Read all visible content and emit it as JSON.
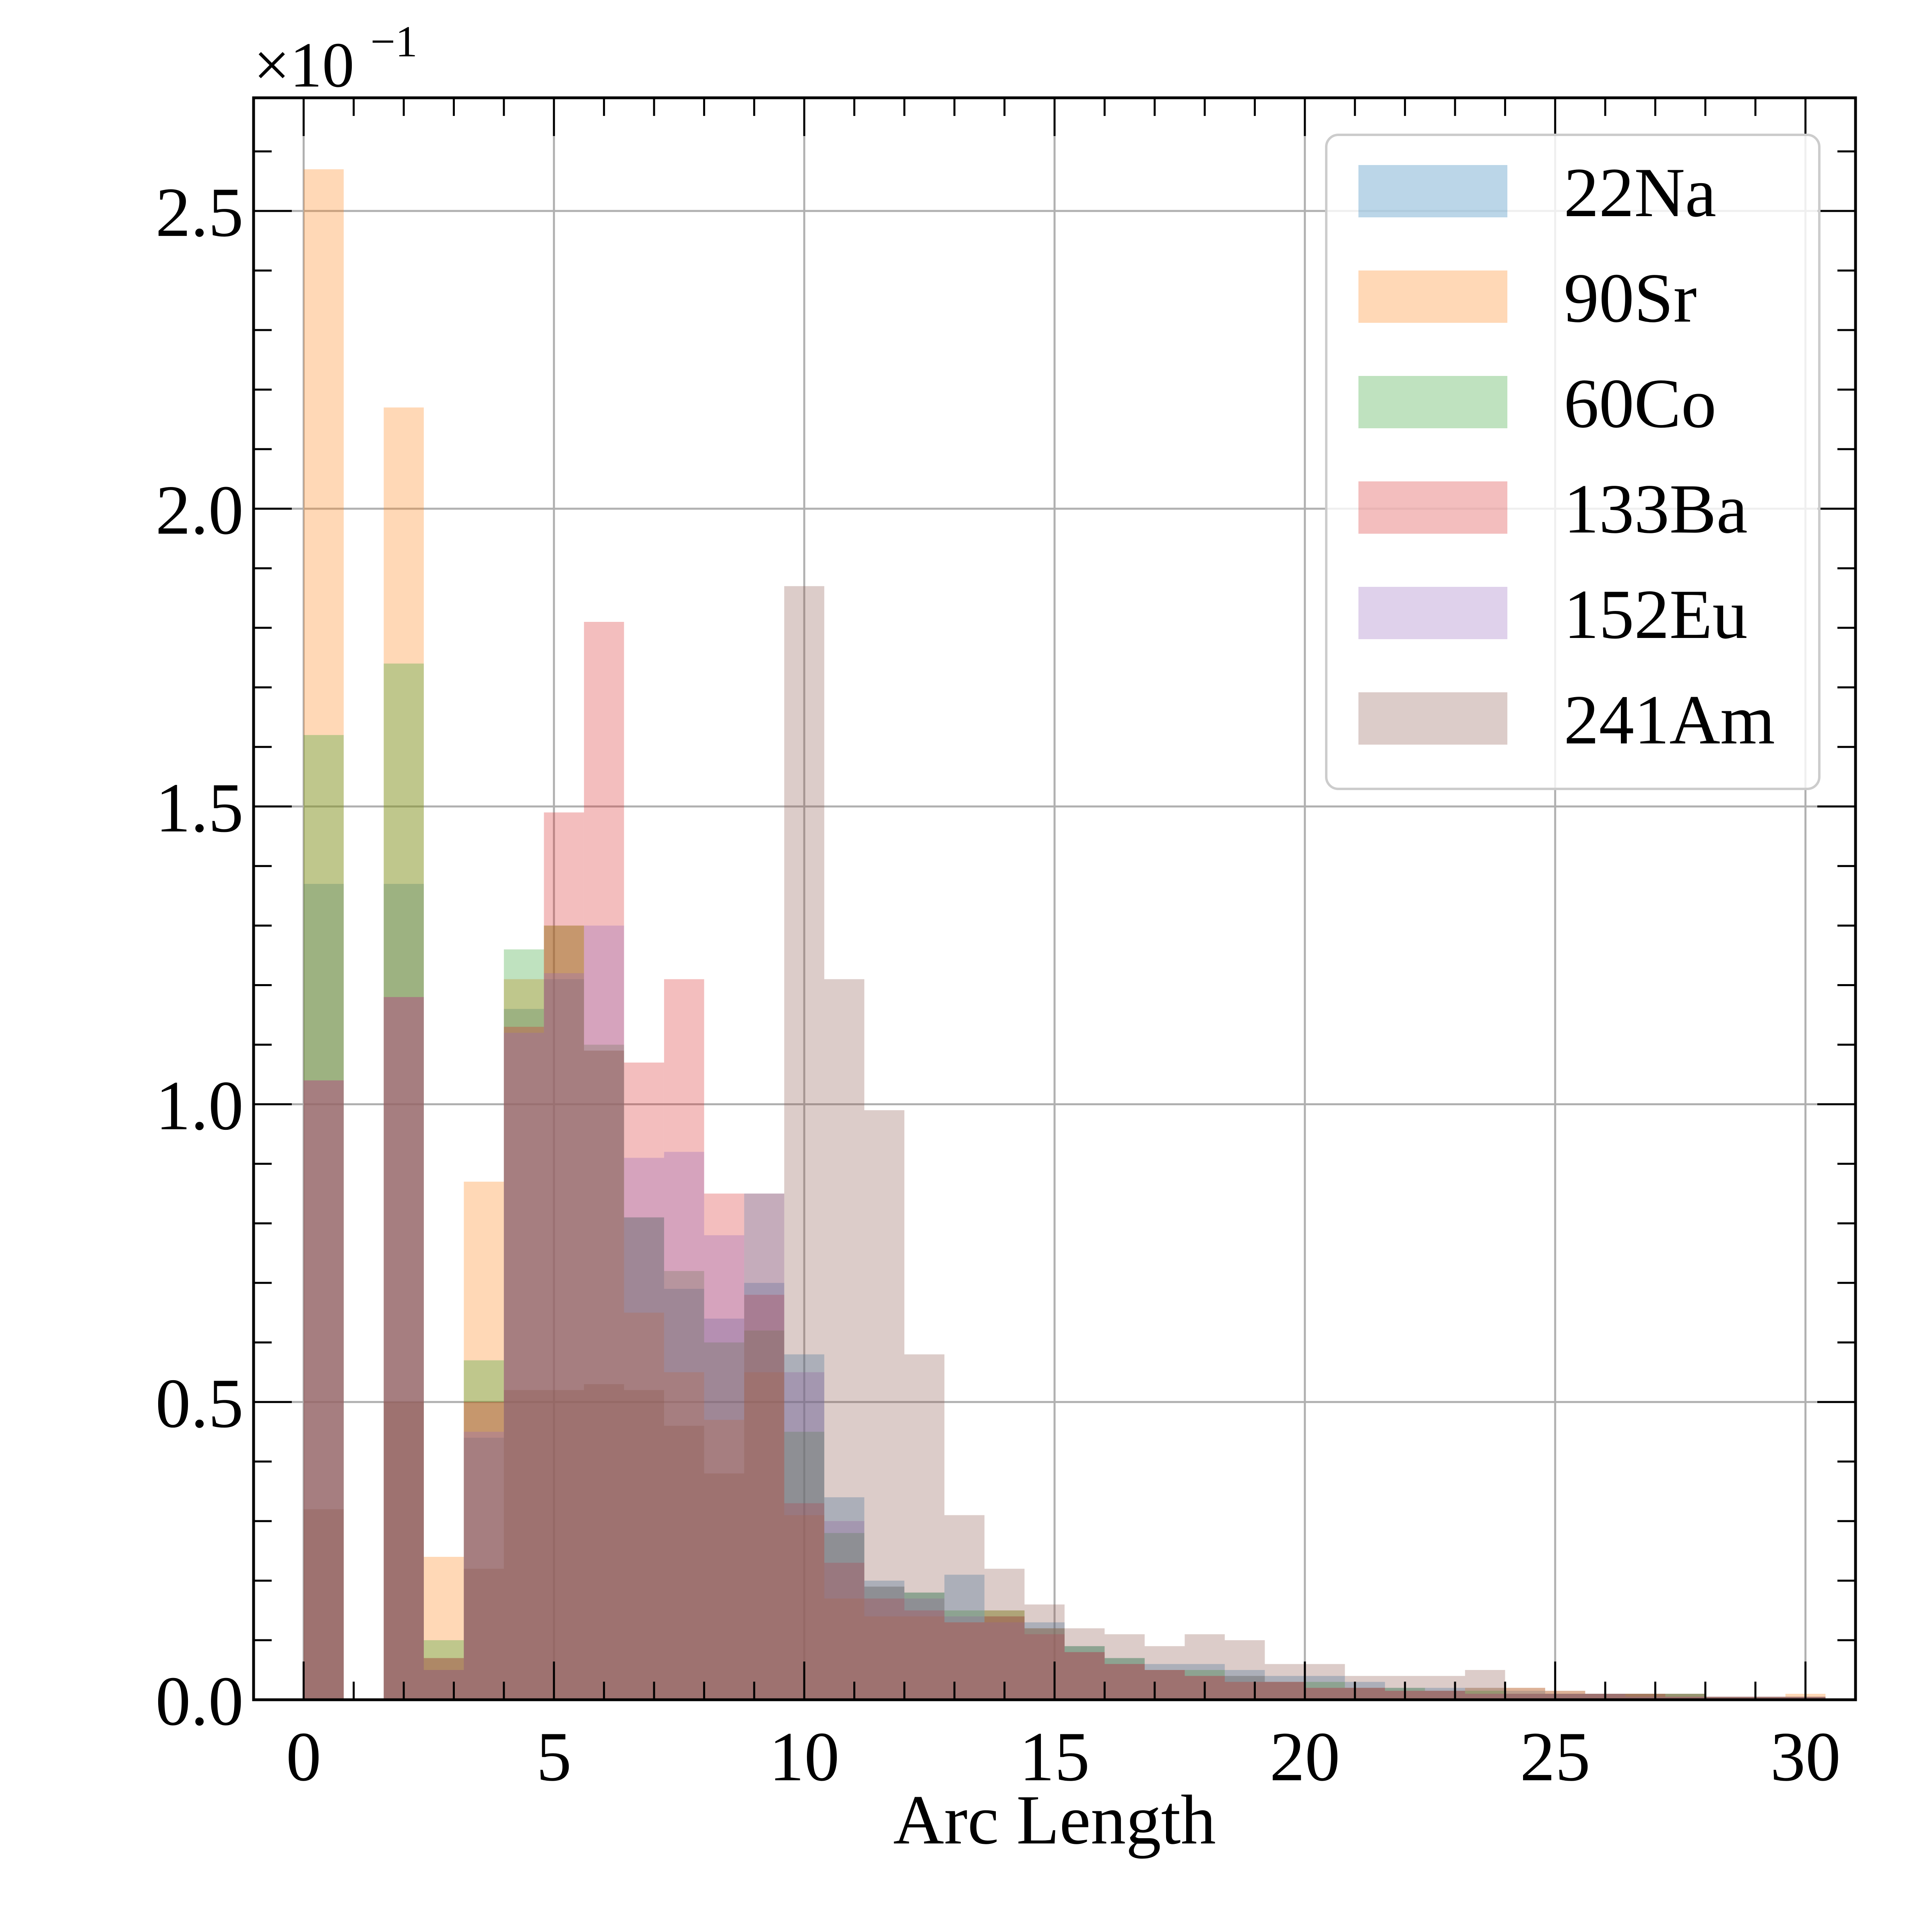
{
  "chart_data": {
    "type": "bar",
    "subtype": "overlaid-histogram",
    "title": "",
    "xlabel": "Arc Length",
    "ylabel": "",
    "y_offset_text": "×10",
    "y_offset_exponent": "−1",
    "xlim": [
      -1,
      31
    ],
    "ylim": [
      0,
      2.69
    ],
    "xticks": [
      0,
      5,
      10,
      15,
      20,
      25,
      30
    ],
    "xtick_labels": [
      "0",
      "5",
      "10",
      "15",
      "20",
      "25",
      "30"
    ],
    "yticks": [
      0,
      0.5,
      1.0,
      1.5,
      2.0,
      2.5
    ],
    "ytick_labels": [
      "0.0",
      "0.5",
      "1.0",
      "1.5",
      "2.0",
      "2.5"
    ],
    "grid": true,
    "legend_position": "top-right",
    "bin_edges": [
      0,
      0.8,
      1.6,
      2.4,
      3.2,
      4.0,
      4.8,
      5.6,
      6.4,
      7.2,
      8.0,
      8.8,
      9.6,
      10.4,
      11.2,
      12.0,
      12.8,
      13.6,
      14.4,
      15.2,
      16.0,
      16.8,
      17.6,
      18.4,
      19.2,
      20.0,
      20.8,
      21.6,
      22.4,
      23.2,
      24.0,
      24.8,
      25.6,
      26.4,
      27.2,
      28.0,
      28.8,
      29.6,
      30.4
    ],
    "series": [
      {
        "name": "22Na",
        "color": "#1f77b4",
        "values": [
          1.37,
          0,
          1.37,
          0.07,
          0.44,
          1.16,
          1.21,
          1.09,
          0.81,
          0.69,
          0.64,
          0.7,
          0.58,
          0.34,
          0.2,
          0.18,
          0.21,
          0.14,
          0.13,
          0.09,
          0.07,
          0.06,
          0.06,
          0.05,
          0.04,
          0.04,
          0.03,
          0.02,
          0.02,
          0.02,
          0.015,
          0.01,
          0.01,
          0.01,
          0.01,
          0.005,
          0.005,
          0.005
        ]
      },
      {
        "name": "90Sr",
        "color": "#ff7f0e",
        "values": [
          2.57,
          0,
          2.17,
          0.24,
          0.87,
          1.21,
          1.3,
          1.09,
          0.65,
          0.55,
          0.47,
          0.55,
          0.31,
          0.17,
          0.14,
          0.14,
          0.13,
          0.15,
          0.12,
          0.08,
          0.06,
          0.05,
          0.04,
          0.03,
          0.03,
          0.02,
          0.02,
          0.015,
          0.015,
          0.02,
          0.02,
          0.015,
          0.01,
          0.01,
          0.01,
          0.005,
          0.005,
          0.01
        ]
      },
      {
        "name": "60Co",
        "color": "#2ca02c",
        "values": [
          1.62,
          0,
          1.74,
          0.1,
          0.57,
          1.26,
          1.3,
          1.1,
          0.81,
          0.72,
          0.6,
          0.62,
          0.45,
          0.28,
          0.19,
          0.18,
          0.15,
          0.15,
          0.12,
          0.09,
          0.07,
          0.05,
          0.05,
          0.04,
          0.03,
          0.03,
          0.02,
          0.02,
          0.015,
          0.015,
          0.01,
          0.01,
          0.01,
          0.01,
          0.01,
          0.005,
          0.005,
          0.005
        ]
      },
      {
        "name": "133Ba",
        "color": "#d62728",
        "values": [
          1.04,
          0,
          1.18,
          0.07,
          0.5,
          1.13,
          1.49,
          1.81,
          1.07,
          1.21,
          0.85,
          0.68,
          0.33,
          0.23,
          0.17,
          0.15,
          0.13,
          0.14,
          0.11,
          0.08,
          0.06,
          0.05,
          0.04,
          0.03,
          0.03,
          0.02,
          0.02,
          0.015,
          0.015,
          0.01,
          0.01,
          0.01,
          0.01,
          0.01,
          0.005,
          0.005,
          0.005,
          0.005
        ]
      },
      {
        "name": "152Eu",
        "color": "#9467bd",
        "values": [
          1.04,
          0,
          1.18,
          0.05,
          0.45,
          1.12,
          1.22,
          1.3,
          0.91,
          0.92,
          0.78,
          0.85,
          0.55,
          0.3,
          0.19,
          0.17,
          0.14,
          0.13,
          0.12,
          0.08,
          0.06,
          0.05,
          0.04,
          0.04,
          0.03,
          0.02,
          0.02,
          0.015,
          0.015,
          0.01,
          0.01,
          0.01,
          0.01,
          0.005,
          0.005,
          0.005,
          0.005,
          0.005
        ]
      },
      {
        "name": "241Am",
        "color": "#8c564b",
        "values": [
          0.32,
          0,
          0.5,
          0.05,
          0.22,
          0.52,
          0.52,
          0.53,
          0.52,
          0.46,
          0.38,
          0.85,
          1.87,
          1.21,
          0.99,
          0.58,
          0.31,
          0.22,
          0.16,
          0.12,
          0.11,
          0.09,
          0.11,
          0.1,
          0.06,
          0.06,
          0.04,
          0.04,
          0.04,
          0.05,
          0.02,
          0.015,
          0.01,
          0.01,
          0.01,
          0.005,
          0.005,
          0.005
        ]
      }
    ]
  }
}
